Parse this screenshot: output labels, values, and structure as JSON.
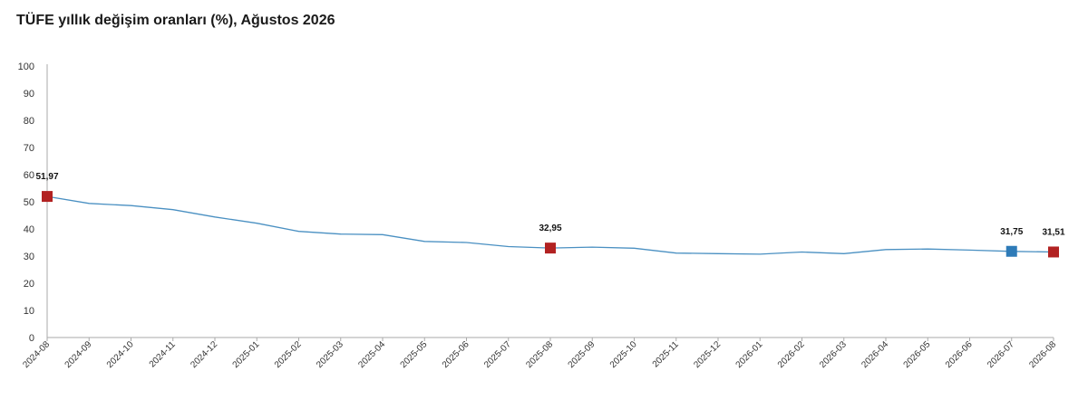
{
  "chart_data": {
    "type": "line",
    "title": "TÜFE yıllık değişim oranları (%), Ağustos 2026",
    "xlabel": "",
    "ylabel": "",
    "ylim": [
      0,
      100
    ],
    "yticks": [
      0,
      10,
      20,
      30,
      40,
      50,
      60,
      70,
      80,
      90,
      100
    ],
    "grid": false,
    "categories": [
      "2024-08",
      "2024-09",
      "2024-10",
      "2024-11",
      "2024-12",
      "2025-01",
      "2025-02",
      "2025-03",
      "2025-04",
      "2025-05",
      "2025-06",
      "2025-07",
      "2025-08",
      "2025-09",
      "2025-10",
      "2025-11",
      "2025-12",
      "2026-01",
      "2026-02",
      "2026-03",
      "2026-04",
      "2026-05",
      "2026-06",
      "2026-07",
      "2026-08"
    ],
    "series": [
      {
        "name": "",
        "color": "#4a90c2",
        "values": [
          51.97,
          49.4,
          48.6,
          47.1,
          44.4,
          42.1,
          39.1,
          38.1,
          37.9,
          35.4,
          35.0,
          33.5,
          32.95,
          33.3,
          32.9,
          31.1,
          30.9,
          30.7,
          31.5,
          30.9,
          32.4,
          32.6,
          32.2,
          31.75,
          31.51
        ]
      }
    ],
    "highlighted_points": [
      {
        "category": "2024-08",
        "value": 51.97,
        "label": "51,97",
        "color": "#b22222"
      },
      {
        "category": "2025-08",
        "value": 32.95,
        "label": "32,95",
        "color": "#b22222"
      },
      {
        "category": "2026-07",
        "value": 31.75,
        "label": "31,75",
        "color": "#2e7bb8"
      },
      {
        "category": "2026-08",
        "value": 31.51,
        "label": "31,51",
        "color": "#b22222"
      }
    ],
    "axis_color": "#aaaaaa"
  }
}
